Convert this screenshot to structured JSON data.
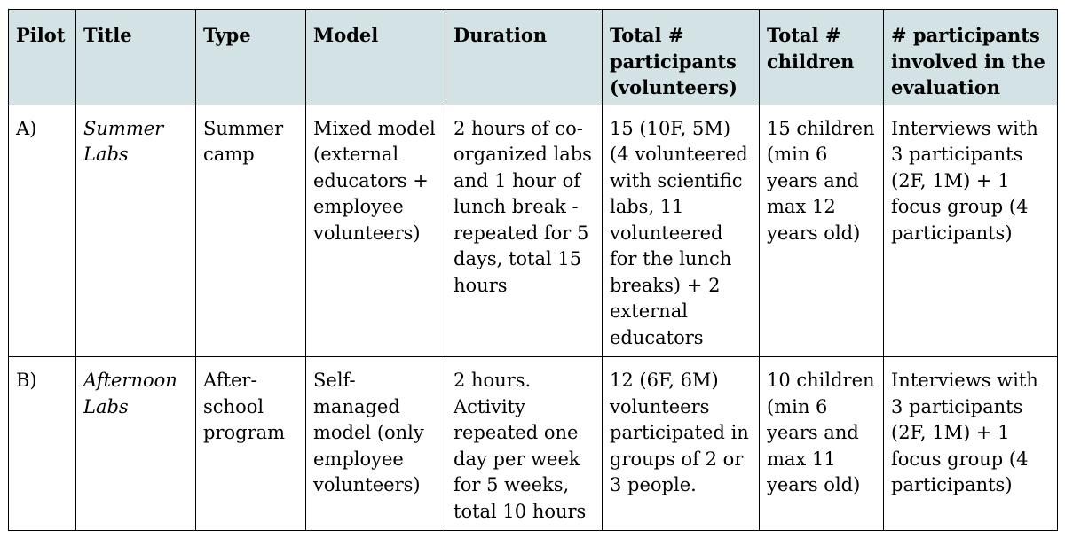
{
  "table": {
    "headers": [
      "Pilot",
      "Title",
      "Type",
      "Model",
      "Duration",
      "Total # participants (volunteers)",
      "Total # children",
      "# participants involved in the evaluation"
    ],
    "rows": [
      {
        "pilot": "A)",
        "title": "Summer Labs",
        "type": "Summer camp",
        "model": "Mixed model (external educators + employee volunteers)",
        "duration": "2 hours of co-organized labs and 1 hour of lunch break - repeated for 5 days, total 15 hours",
        "participants": "15 (10F, 5M) (4 volunteered with scientific labs, 11 volunteered for the lunch breaks) + 2 external educators",
        "children": "15 children (min 6 years and max 12 years old)",
        "evaluation": "Interviews with 3 participants (2F, 1M) + 1 focus group (4 participants)"
      },
      {
        "pilot": "B)",
        "title": "Afternoon Labs",
        "type": "After-school program",
        "model": "Self-managed model (only employee volunteers)",
        "duration": "2 hours. Activity repeated one day per week for 5 weeks, total 10 hours",
        "participants": "12 (6F, 6M) volunteers participated in groups of 2 or 3 people.",
        "children": "10 children (min 6 years and max 11 years old)",
        "evaluation": "Interviews with 3 participants (2F, 1M) + 1 focus group (4 participants)"
      }
    ]
  }
}
